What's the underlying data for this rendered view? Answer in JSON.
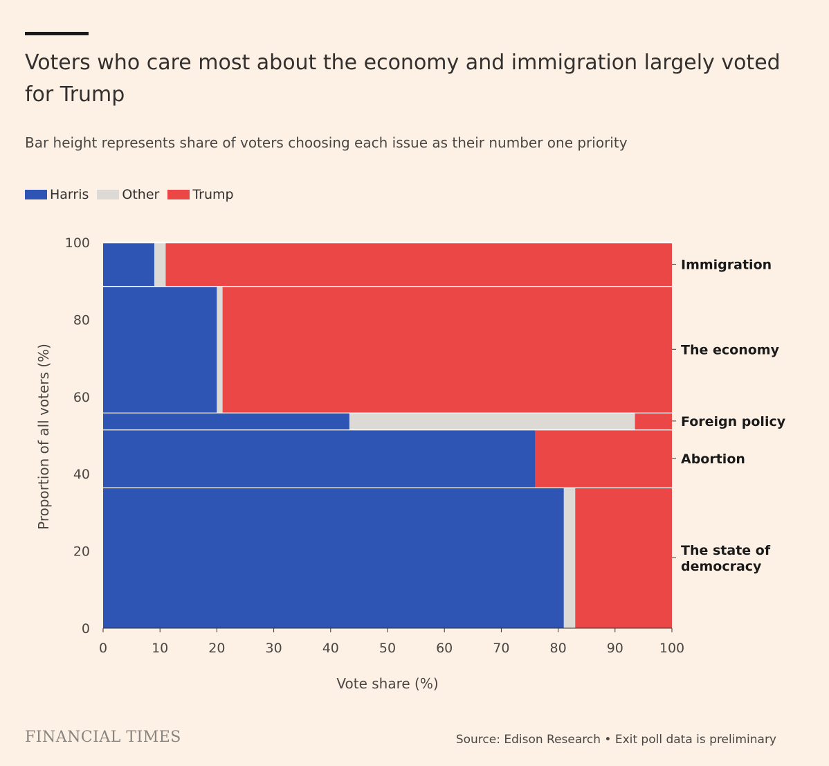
{
  "title": "Voters who care most about the economy and immigration largely voted for Trump",
  "subtitle": "Bar height represents share of voters choosing each issue as their number one priority",
  "legend": [
    {
      "label": "Harris",
      "color": "#2f55b4"
    },
    {
      "label": "Other",
      "color": "#ddd9d5"
    },
    {
      "label": "Trump",
      "color": "#ec4747"
    }
  ],
  "footer": {
    "logo": "FINANCIAL TIMES",
    "source": "Source: Edison Research • Exit poll data is preliminary"
  },
  "chart_data": {
    "type": "marimekko",
    "xlabel": "Vote share (%)",
    "ylabel": "Proportion of all voters (%)",
    "xlim": [
      0,
      100
    ],
    "ylim": [
      0,
      100
    ],
    "xticks": [
      0,
      10,
      20,
      30,
      40,
      50,
      60,
      70,
      80,
      90,
      100
    ],
    "yticks": [
      0,
      20,
      40,
      60,
      80,
      100
    ],
    "series_names": [
      "Harris",
      "Other",
      "Trump"
    ],
    "segments": [
      {
        "issue": "The state of democracy",
        "label_lines": [
          "The state of",
          "democracy"
        ],
        "y0": 0,
        "y1": 36.5,
        "harris": 81,
        "other": 2,
        "trump": 17
      },
      {
        "issue": "Abortion",
        "label_lines": [
          "Abortion"
        ],
        "y0": 36.5,
        "y1": 51.5,
        "harris": 76,
        "other": 0,
        "trump": 24
      },
      {
        "issue": "Foreign policy",
        "label_lines": [
          "Foreign policy"
        ],
        "y0": 51.5,
        "y1": 55.9,
        "harris": 43.3,
        "other": 50.2,
        "trump": 6.5
      },
      {
        "issue": "The economy",
        "label_lines": [
          "The economy"
        ],
        "y0": 55.9,
        "y1": 88.7,
        "harris": 20,
        "other": 1,
        "trump": 79
      },
      {
        "issue": "Immigration",
        "label_lines": [
          "Immigration"
        ],
        "y0": 88.7,
        "y1": 100,
        "harris": 9,
        "other": 2,
        "trump": 89
      }
    ]
  }
}
